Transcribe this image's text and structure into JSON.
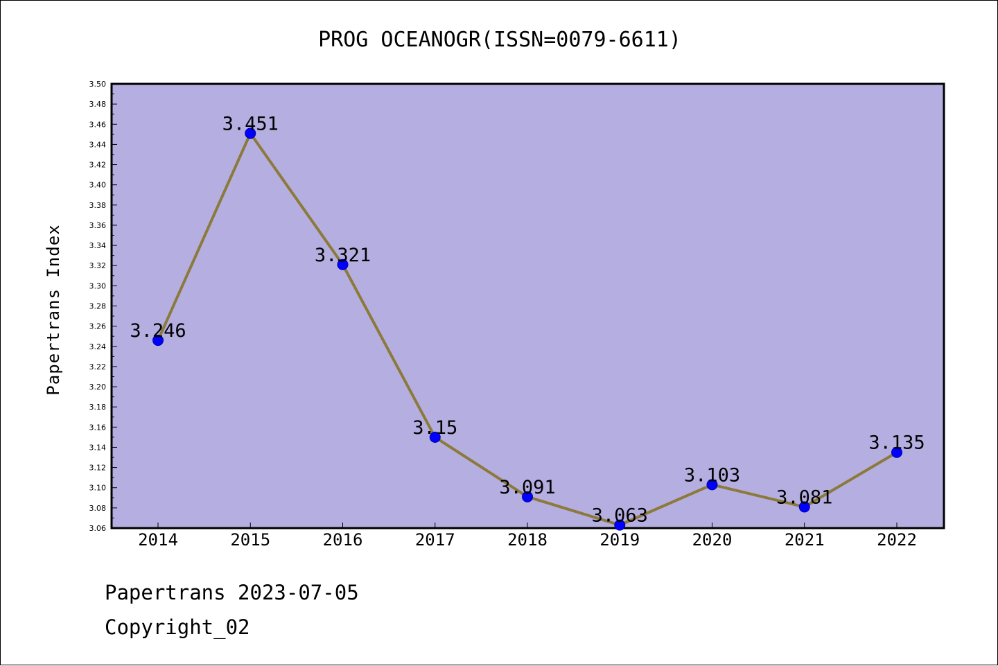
{
  "colors": {
    "plot_background": "#b5aee1",
    "line": "#8b7a3a",
    "marker_fill": "#0000ff",
    "marker_edge": "#0000aa"
  },
  "chart_data": {
    "type": "line",
    "title": "PROG OCEANOGR(ISSN=0079-6611)",
    "ylabel": "Papertrans Index",
    "xlabel": "",
    "categories": [
      "2014",
      "2015",
      "2016",
      "2017",
      "2018",
      "2019",
      "2020",
      "2021",
      "2022"
    ],
    "series": [
      {
        "values": [
          3.246,
          3.451,
          3.321,
          3.15,
          3.091,
          3.063,
          3.103,
          3.081,
          3.135
        ],
        "labels": [
          "3.246",
          "3.451",
          "3.321",
          "3.15",
          "3.091",
          "3.063",
          "3.103",
          "3.081",
          "3.135"
        ]
      }
    ],
    "ylim": [
      3.06,
      3.5
    ],
    "yticks": [
      "3.06",
      "3.08",
      "3.10",
      "3.12",
      "3.14",
      "3.16",
      "3.18",
      "3.20",
      "3.22",
      "3.24",
      "3.26",
      "3.28",
      "3.30",
      "3.32",
      "3.34",
      "3.36",
      "3.38",
      "3.40",
      "3.42",
      "3.44",
      "3.46",
      "3.48",
      "3.50"
    ],
    "grid": false,
    "legend": "none"
  },
  "footer": {
    "line1": "Papertrans 2023-07-05",
    "line2": "Copyright_02"
  }
}
